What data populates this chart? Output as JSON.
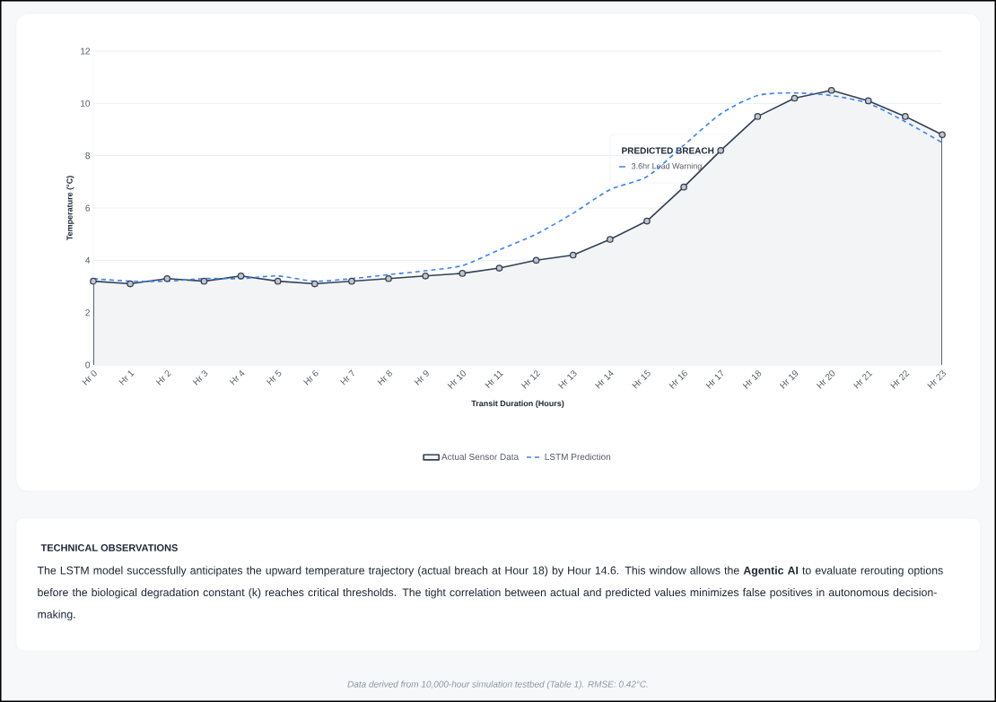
{
  "chart_data": {
    "type": "line",
    "categories": [
      "Hr 0",
      "Hr 1",
      "Hr 2",
      "Hr 3",
      "Hr 4",
      "Hr 5",
      "Hr 6",
      "Hr 7",
      "Hr 8",
      "Hr 9",
      "Hr 10",
      "Hr 11",
      "Hr 12",
      "Hr 13",
      "Hr 14",
      "Hr 15",
      "Hr 16",
      "Hr 17",
      "Hr 18",
      "Hr 19",
      "Hr 20",
      "Hr 21",
      "Hr 22",
      "Hr 23"
    ],
    "series": [
      {
        "name": "Actual Sensor Data",
        "type": "area",
        "color": "#334155",
        "marker": "circle",
        "line_style": "solid",
        "values": [
          3.2,
          3.1,
          3.3,
          3.2,
          3.4,
          3.2,
          3.1,
          3.2,
          3.3,
          3.4,
          3.5,
          3.7,
          4.0,
          4.2,
          4.8,
          5.5,
          6.8,
          8.2,
          9.5,
          10.2,
          10.5,
          10.1,
          9.5,
          8.8
        ]
      },
      {
        "name": "LSTM Prediction",
        "color": "#3b82f6",
        "marker": "none",
        "line_style": "dashed",
        "values": [
          3.3,
          3.2,
          3.2,
          3.3,
          3.3,
          3.4,
          3.2,
          3.3,
          3.45,
          3.6,
          3.8,
          4.4,
          5.0,
          5.8,
          6.7,
          7.2,
          8.4,
          9.6,
          10.3,
          10.4,
          10.3,
          10.0,
          9.3,
          8.5
        ]
      }
    ],
    "xlabel": "Transit Duration (Hours)",
    "ylabel": "Temperature (°C)",
    "ylim": [
      0,
      12
    ],
    "yticks": [
      0,
      2,
      4,
      6,
      8,
      10,
      12
    ],
    "grid": "y",
    "legend": "bottom",
    "annotations": [
      "PREDICTED BREACH",
      "3.6hr Lead Warning",
      "TECHNICAL OBSERVATIONS",
      "The LSTM model successfully anticipates the upward temperature trajectory (actual breach at Hour 18) by Hour 14.6. This window allows the **Agentic AI** to evaluate rerouting options before the biological degradation constant (k) reaches critical thresholds. The tight correlation between actual and predicted values minimizes false positives in autonomous decision-making.",
      "Data derived from 10,000-hour simulation testbed (Table 1). RMSE: 0.42°C."
    ]
  }
}
